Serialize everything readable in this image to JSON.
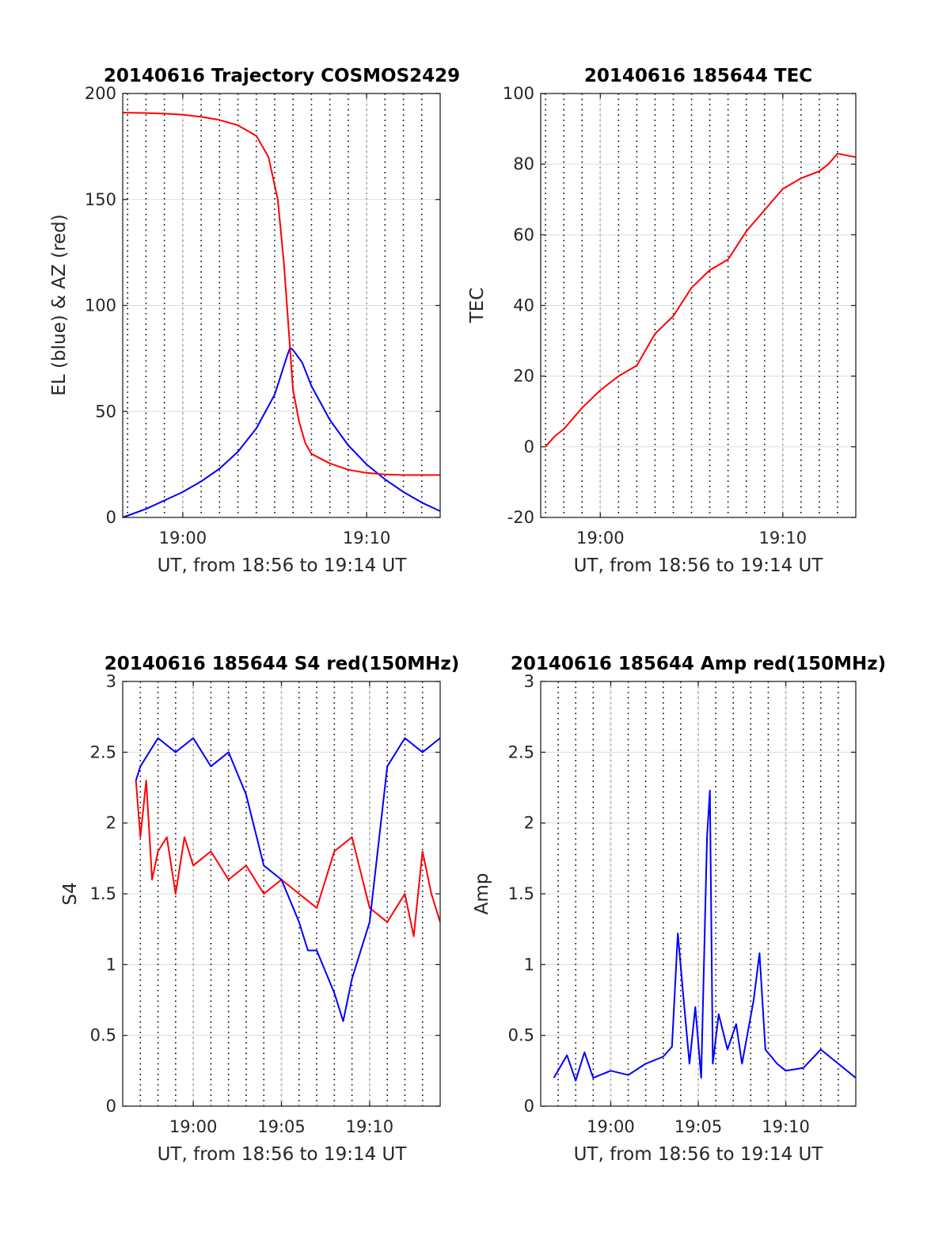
{
  "chart_data": [
    {
      "type": "line",
      "title": "20140616 Trajectory COSMOS2429",
      "xlabel": "UT, from 18:56 to 19:14 UT",
      "ylabel": "EL (blue) & AZ (red)",
      "xlim": [
        "18:56:44",
        "19:14:00"
      ],
      "ylim": [
        0,
        200
      ],
      "yticks": [
        0,
        50,
        100,
        150,
        200
      ],
      "xticks": [
        {
          "value": "19:00",
          "label": "19:00"
        },
        {
          "value": "19:10",
          "label": "19:10"
        }
      ],
      "grid": true,
      "vlines": [
        "18:57",
        "18:58",
        "18:59",
        "19:00",
        "19:01",
        "19:02",
        "19:03",
        "19:04",
        "19:05",
        "19:06",
        "19:07",
        "19:08",
        "19:09",
        "19:10",
        "19:11",
        "19:12",
        "19:13"
      ],
      "series": [
        {
          "name": "EL",
          "color": "#0000ff",
          "points": [
            [
              "18:56:44",
              0
            ],
            [
              "18:58:00",
              4
            ],
            [
              "18:59:00",
              8
            ],
            [
              "19:00:00",
              12
            ],
            [
              "19:01:00",
              17
            ],
            [
              "19:02:00",
              23
            ],
            [
              "19:03:00",
              31
            ],
            [
              "19:04:00",
              42
            ],
            [
              "19:05:00",
              58
            ],
            [
              "19:05:40",
              76
            ],
            [
              "19:05:50",
              80
            ],
            [
              "19:06:00",
              79
            ],
            [
              "19:06:30",
              73
            ],
            [
              "19:07:00",
              62
            ],
            [
              "19:08:00",
              46
            ],
            [
              "19:09:00",
              34
            ],
            [
              "19:10:00",
              25
            ],
            [
              "19:11:00",
              18
            ],
            [
              "19:12:00",
              12
            ],
            [
              "19:13:00",
              7
            ],
            [
              "19:14:00",
              3
            ]
          ]
        },
        {
          "name": "AZ",
          "color": "#ff0000",
          "points": [
            [
              "18:56:44",
              191
            ],
            [
              "18:58:00",
              190.8
            ],
            [
              "18:59:00",
              190.5
            ],
            [
              "19:00:00",
              190
            ],
            [
              "19:01:00",
              189
            ],
            [
              "19:02:00",
              187.5
            ],
            [
              "19:03:00",
              185
            ],
            [
              "19:04:00",
              180
            ],
            [
              "19:04:40",
              170
            ],
            [
              "19:05:10",
              150
            ],
            [
              "19:05:30",
              120
            ],
            [
              "19:05:40",
              100
            ],
            [
              "19:05:50",
              80
            ],
            [
              "19:06:00",
              60
            ],
            [
              "19:06:20",
              45
            ],
            [
              "19:06:40",
              35
            ],
            [
              "19:07:00",
              30
            ],
            [
              "19:08:00",
              25.5
            ],
            [
              "19:09:00",
              22.5
            ],
            [
              "19:10:00",
              21
            ],
            [
              "19:11:00",
              20.3
            ],
            [
              "19:12:00",
              20
            ],
            [
              "19:14:00",
              20
            ]
          ]
        }
      ]
    },
    {
      "type": "line",
      "title": "20140616 185644 TEC",
      "xlabel": "UT, from 18:56 to 19:14 UT",
      "ylabel": "TEC",
      "xlim": [
        "18:56:44",
        "19:14:00"
      ],
      "ylim": [
        -20,
        100
      ],
      "yticks": [
        -20,
        0,
        20,
        40,
        60,
        80,
        100
      ],
      "xticks": [
        {
          "value": "19:00",
          "label": "19:00"
        },
        {
          "value": "19:10",
          "label": "19:10"
        }
      ],
      "grid": true,
      "vlines": [
        "18:57",
        "18:58",
        "18:59",
        "19:00",
        "19:01",
        "19:02",
        "19:03",
        "19:04",
        "19:05",
        "19:06",
        "19:07",
        "19:08",
        "19:09",
        "19:10",
        "19:11",
        "19:12",
        "19:13"
      ],
      "series": [
        {
          "name": "TEC",
          "color": "#ff0000",
          "points": [
            [
              "18:57:00",
              0
            ],
            [
              "18:57:30",
              3
            ],
            [
              "18:58:00",
              5
            ],
            [
              "18:59:00",
              11
            ],
            [
              "19:00:00",
              16
            ],
            [
              "19:00:30",
              18
            ],
            [
              "19:01:00",
              20
            ],
            [
              "19:02:00",
              23
            ],
            [
              "19:03:00",
              32
            ],
            [
              "19:04:00",
              37
            ],
            [
              "19:05:00",
              45
            ],
            [
              "19:06:00",
              50
            ],
            [
              "19:07:00",
              53
            ],
            [
              "19:07:30",
              57
            ],
            [
              "19:08:00",
              61
            ],
            [
              "19:09:00",
              67
            ],
            [
              "19:10:00",
              73
            ],
            [
              "19:11:00",
              76
            ],
            [
              "19:12:00",
              78
            ],
            [
              "19:12:30",
              80
            ],
            [
              "19:13:00",
              83
            ],
            [
              "19:14:00",
              82
            ]
          ]
        }
      ]
    },
    {
      "type": "line",
      "title": "20140616 185644 S4 red(150MHz)",
      "xlabel": "UT, from 18:56 to 19:14 UT",
      "ylabel": "S4",
      "xlim": [
        "18:56:00",
        "19:14:00"
      ],
      "ylim": [
        0,
        3
      ],
      "yticks": [
        0,
        0.5,
        1,
        1.5,
        2,
        2.5,
        3
      ],
      "xticks": [
        {
          "value": "19:00",
          "label": "19:00"
        },
        {
          "value": "19:05",
          "label": "19:05"
        },
        {
          "value": "19:10",
          "label": "19:10"
        }
      ],
      "grid": true,
      "vlines": [
        "18:57",
        "18:58",
        "18:59",
        "19:00",
        "19:01",
        "19:02",
        "19:03",
        "19:04",
        "19:05",
        "19:06",
        "19:07",
        "19:08",
        "19:09",
        "19:10",
        "19:11",
        "19:12",
        "19:13"
      ],
      "series": [
        {
          "name": "red",
          "color": "#ff0000",
          "points": [
            [
              "18:56:45",
              2.3
            ],
            [
              "18:57:00",
              1.9
            ],
            [
              "18:57:20",
              2.3
            ],
            [
              "18:57:40",
              1.6
            ],
            [
              "18:58:00",
              1.8
            ],
            [
              "18:58:30",
              1.9
            ],
            [
              "18:59:00",
              1.5
            ],
            [
              "18:59:30",
              1.9
            ],
            [
              "19:00:00",
              1.7
            ],
            [
              "19:01:00",
              1.8
            ],
            [
              "19:02:00",
              1.6
            ],
            [
              "19:03:00",
              1.7
            ],
            [
              "19:04:00",
              1.5
            ],
            [
              "19:05:00",
              1.6
            ],
            [
              "19:06:00",
              1.5
            ],
            [
              "19:07:00",
              1.4
            ],
            [
              "19:08:00",
              1.8
            ],
            [
              "19:09:00",
              1.9
            ],
            [
              "19:10:00",
              1.4
            ],
            [
              "19:11:00",
              1.3
            ],
            [
              "19:12:00",
              1.5
            ],
            [
              "19:12:30",
              1.2
            ],
            [
              "19:13:00",
              1.8
            ],
            [
              "19:13:30",
              1.5
            ],
            [
              "19:14:00",
              1.3
            ]
          ]
        },
        {
          "name": "blue",
          "color": "#0000ff",
          "points": [
            [
              "18:56:45",
              2.3
            ],
            [
              "18:57:00",
              2.4
            ],
            [
              "18:58:00",
              2.6
            ],
            [
              "18:59:00",
              2.5
            ],
            [
              "19:00:00",
              2.6
            ],
            [
              "19:01:00",
              2.4
            ],
            [
              "19:02:00",
              2.5
            ],
            [
              "19:03:00",
              2.2
            ],
            [
              "19:04:00",
              1.7
            ],
            [
              "19:05:00",
              1.6
            ],
            [
              "19:06:00",
              1.3
            ],
            [
              "19:06:30",
              1.1
            ],
            [
              "19:07:00",
              1.1
            ],
            [
              "19:08:00",
              0.8
            ],
            [
              "19:08:30",
              0.6
            ],
            [
              "19:09:00",
              0.9
            ],
            [
              "19:10:00",
              1.3
            ],
            [
              "19:11:00",
              2.4
            ],
            [
              "19:12:00",
              2.6
            ],
            [
              "19:13:00",
              2.5
            ],
            [
              "19:14:00",
              2.6
            ]
          ]
        }
      ]
    },
    {
      "type": "line",
      "title": "20140616 185644 Amp red(150MHz)",
      "xlabel": "UT, from 18:56 to 19:14 UT",
      "ylabel": "Amp",
      "xlim": [
        "18:56:00",
        "19:14:00"
      ],
      "ylim": [
        0,
        3
      ],
      "yticks": [
        0,
        0.5,
        1,
        1.5,
        2,
        2.5,
        3
      ],
      "xticks": [
        {
          "value": "19:00",
          "label": "19:00"
        },
        {
          "value": "19:05",
          "label": "19:05"
        },
        {
          "value": "19:10",
          "label": "19:10"
        }
      ],
      "grid": true,
      "vlines": [
        "18:57",
        "18:58",
        "18:59",
        "19:00",
        "19:01",
        "19:02",
        "19:03",
        "19:04",
        "19:05",
        "19:06",
        "19:07",
        "19:08",
        "19:09",
        "19:10",
        "19:11",
        "19:12",
        "19:13"
      ],
      "series": [
        {
          "name": "Amp",
          "color": "#0000ff",
          "points": [
            [
              "18:56:45",
              0.2
            ],
            [
              "18:57:30",
              0.36
            ],
            [
              "18:58:00",
              0.18
            ],
            [
              "18:58:30",
              0.38
            ],
            [
              "18:59:00",
              0.2
            ],
            [
              "19:00:00",
              0.25
            ],
            [
              "19:01:00",
              0.22
            ],
            [
              "19:02:00",
              0.3
            ],
            [
              "19:03:00",
              0.35
            ],
            [
              "19:03:30",
              0.42
            ],
            [
              "19:03:50",
              1.22
            ],
            [
              "19:04:10",
              0.75
            ],
            [
              "19:04:30",
              0.3
            ],
            [
              "19:04:50",
              0.7
            ],
            [
              "19:05:10",
              0.2
            ],
            [
              "19:05:30",
              1.9
            ],
            [
              "19:05:40",
              2.23
            ],
            [
              "19:05:50",
              0.3
            ],
            [
              "19:06:10",
              0.65
            ],
            [
              "19:06:40",
              0.4
            ],
            [
              "19:07:10",
              0.58
            ],
            [
              "19:07:30",
              0.3
            ],
            [
              "19:08:10",
              0.75
            ],
            [
              "19:08:30",
              1.08
            ],
            [
              "19:08:50",
              0.4
            ],
            [
              "19:09:30",
              0.3
            ],
            [
              "19:10:00",
              0.25
            ],
            [
              "19:11:00",
              0.27
            ],
            [
              "19:12:00",
              0.4
            ],
            [
              "19:13:00",
              0.3
            ],
            [
              "19:14:00",
              0.2
            ]
          ]
        }
      ]
    }
  ]
}
